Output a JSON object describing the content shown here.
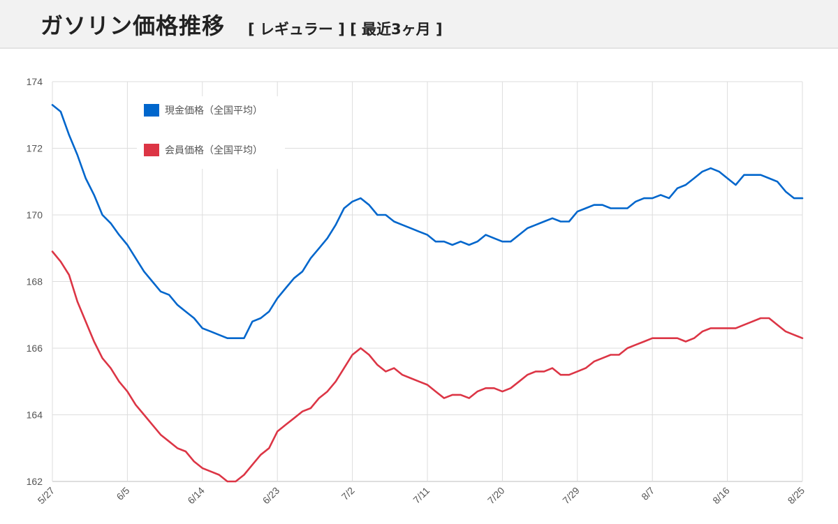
{
  "header": {
    "title": "ガソリン価格推移",
    "subtitle": "[ レギュラー ] [ 最近3ヶ月 ]"
  },
  "chart_data": {
    "type": "line",
    "title": "",
    "xlabel": "",
    "ylabel": "",
    "ylim": [
      162,
      174
    ],
    "y_ticks": [
      162,
      164,
      166,
      168,
      170,
      172,
      174
    ],
    "x_tick_labels": [
      "5/27",
      "6/5",
      "6/14",
      "6/23",
      "7/2",
      "7/11",
      "7/20",
      "7/29",
      "8/7",
      "8/16",
      "8/25"
    ],
    "x_start_label": "5/27",
    "x_tick_step_days": 9,
    "x_count": 91,
    "grid": true,
    "legend_position": "top-left",
    "series": [
      {
        "name": "現金価格（全国平均）",
        "color": "#0066cc",
        "values": [
          173.3,
          173.1,
          172.4,
          171.8,
          171.1,
          170.6,
          170.0,
          169.75,
          169.4,
          169.1,
          168.7,
          168.3,
          168.0,
          167.7,
          167.6,
          167.3,
          167.1,
          166.9,
          166.6,
          166.5,
          166.4,
          166.3,
          166.3,
          166.3,
          166.8,
          166.9,
          167.1,
          167.5,
          167.8,
          168.1,
          168.3,
          168.7,
          169.0,
          169.3,
          169.7,
          170.2,
          170.4,
          170.5,
          170.3,
          170.0,
          170.0,
          169.8,
          169.7,
          169.6,
          169.5,
          169.4,
          169.2,
          169.2,
          169.1,
          169.2,
          169.1,
          169.2,
          169.4,
          169.3,
          169.2,
          169.2,
          169.4,
          169.6,
          169.7,
          169.8,
          169.9,
          169.8,
          169.8,
          170.1,
          170.2,
          170.3,
          170.3,
          170.2,
          170.2,
          170.2,
          170.4,
          170.5,
          170.5,
          170.6,
          170.5,
          170.8,
          170.9,
          171.1,
          171.3,
          171.4,
          171.3,
          171.1,
          170.9,
          171.2,
          171.2,
          171.2,
          171.1,
          171.0,
          170.7,
          170.5,
          170.5
        ]
      },
      {
        "name": "会員価格（全国平均）",
        "color": "#dc3545",
        "values": [
          168.9,
          168.6,
          168.2,
          167.4,
          166.8,
          166.2,
          165.7,
          165.4,
          165.0,
          164.7,
          164.3,
          164.0,
          163.7,
          163.4,
          163.2,
          163.0,
          162.9,
          162.6,
          162.4,
          162.3,
          162.2,
          162.0,
          162.0,
          162.2,
          162.5,
          162.8,
          163.0,
          163.5,
          163.7,
          163.9,
          164.1,
          164.2,
          164.5,
          164.7,
          165.0,
          165.4,
          165.8,
          166.0,
          165.8,
          165.5,
          165.3,
          165.4,
          165.2,
          165.1,
          165.0,
          164.9,
          164.7,
          164.5,
          164.6,
          164.6,
          164.5,
          164.7,
          164.8,
          164.8,
          164.7,
          164.8,
          165.0,
          165.2,
          165.3,
          165.3,
          165.4,
          165.2,
          165.2,
          165.3,
          165.4,
          165.6,
          165.7,
          165.8,
          165.8,
          166.0,
          166.1,
          166.2,
          166.3,
          166.3,
          166.3,
          166.3,
          166.2,
          166.3,
          166.5,
          166.6,
          166.6,
          166.6,
          166.6,
          166.7,
          166.8,
          166.9,
          166.9,
          166.7,
          166.5,
          166.4,
          166.3
        ]
      }
    ]
  }
}
